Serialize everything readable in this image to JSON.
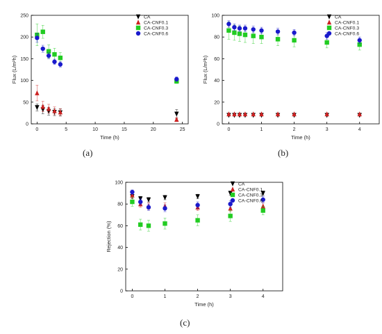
{
  "chart_data": [
    {
      "panel": "(a)",
      "type": "scatter",
      "xlabel": "Time (h)",
      "ylabel": "Flux (L/m²h)",
      "xlim": [
        -1,
        26
      ],
      "ylim": [
        0,
        250
      ],
      "xticks": [
        0,
        5,
        10,
        15,
        20,
        25
      ],
      "yticks": [
        0,
        50,
        100,
        150,
        200,
        250
      ],
      "grid": false,
      "legend_position": "top-right",
      "series": [
        {
          "name": "CA",
          "color": "#000000",
          "marker": "triangle-down",
          "x": [
            0,
            1,
            2,
            3,
            4,
            24
          ],
          "y": [
            38,
            33,
            29,
            27,
            26,
            23
          ],
          "err": [
            8,
            10,
            9,
            8,
            8,
            10
          ]
        },
        {
          "name": "CA-CNF0.1",
          "color": "#cc2222",
          "marker": "triangle-up",
          "x": [
            0,
            1,
            2,
            3,
            4,
            24
          ],
          "y": [
            71,
            40,
            35,
            30,
            27,
            10
          ],
          "err": [
            18,
            12,
            10,
            9,
            8,
            4
          ]
        },
        {
          "name": "CA-CNF0.3",
          "color": "#22cc22",
          "marker": "square",
          "x": [
            0,
            1,
            2,
            3,
            4,
            24
          ],
          "y": [
            205,
            212,
            167,
            160,
            152,
            98
          ],
          "err": [
            25,
            15,
            15,
            14,
            12,
            5
          ]
        },
        {
          "name": "CA-CNF0.6",
          "color": "#1a1acc",
          "marker": "circle",
          "x": [
            0,
            1,
            2,
            3,
            4,
            24
          ],
          "y": [
            198,
            173,
            157,
            143,
            137,
            103
          ],
          "err": [
            10,
            8,
            7,
            6,
            6,
            5
          ]
        }
      ]
    },
    {
      "panel": "(b)",
      "type": "scatter",
      "xlabel": "Time (h)",
      "ylabel": "Flux (L/m²h)",
      "xlim": [
        -0.2,
        4.6
      ],
      "ylim": [
        0,
        100
      ],
      "xticks": [
        0,
        1,
        2,
        3,
        4
      ],
      "yticks": [
        0,
        20,
        40,
        60,
        80,
        100
      ],
      "grid": false,
      "legend_position": "top-right",
      "series": [
        {
          "name": "CA",
          "color": "#000000",
          "marker": "triangle-down",
          "x": [
            0,
            0.17,
            0.33,
            0.5,
            0.75,
            1,
            1.5,
            2,
            3,
            4
          ],
          "y": [
            8,
            8,
            8,
            8,
            8,
            8,
            8,
            8,
            8,
            8
          ],
          "err": [
            0.5,
            0.5,
            0.5,
            0.5,
            0.5,
            0.5,
            0.5,
            0.5,
            0.5,
            0.5
          ]
        },
        {
          "name": "CA-CNF0.1",
          "color": "#cc2222",
          "marker": "triangle-up",
          "x": [
            0,
            0.17,
            0.33,
            0.5,
            0.75,
            1,
            1.5,
            2,
            3,
            4
          ],
          "y": [
            9,
            9,
            9,
            9,
            9,
            9,
            9,
            9,
            9,
            9
          ],
          "err": [
            0.5,
            0.5,
            0.5,
            0.5,
            0.5,
            0.5,
            0.5,
            0.5,
            0.5,
            0.5
          ]
        },
        {
          "name": "CA-CNF0.3",
          "color": "#22cc22",
          "marker": "square",
          "x": [
            0,
            0.17,
            0.33,
            0.5,
            0.75,
            1,
            1.5,
            2,
            3,
            4
          ],
          "y": [
            86,
            84,
            83,
            82,
            81,
            80,
            78,
            77,
            75,
            73
          ],
          "err": [
            8,
            7,
            7,
            7,
            7,
            6,
            6,
            6,
            5,
            5
          ]
        },
        {
          "name": "CA-CNF0.6",
          "color": "#1a1acc",
          "marker": "circle",
          "x": [
            0,
            0.17,
            0.33,
            0.5,
            0.75,
            1,
            1.5,
            2,
            3,
            4
          ],
          "y": [
            92,
            89,
            88,
            88,
            87,
            86,
            85,
            84,
            81,
            77
          ],
          "err": [
            3,
            3,
            3,
            3,
            3,
            3,
            3,
            3,
            3,
            3
          ]
        }
      ]
    },
    {
      "panel": "(c)",
      "type": "scatter",
      "xlabel": "Time (h)",
      "ylabel": "Rejection (%)",
      "xlim": [
        -0.2,
        4.6
      ],
      "ylim": [
        0,
        100
      ],
      "xticks": [
        0,
        1,
        2,
        3,
        4
      ],
      "yticks": [
        0,
        20,
        40,
        60,
        80,
        100
      ],
      "grid": false,
      "legend_position": "top-right",
      "series": [
        {
          "name": "CA",
          "color": "#000000",
          "marker": "triangle-down",
          "x": [
            0,
            0.25,
            0.5,
            1,
            2,
            3,
            4
          ],
          "y": [
            87,
            85,
            84,
            86,
            87,
            90,
            90
          ],
          "err": [
            2,
            2,
            2,
            2,
            2,
            2,
            2
          ]
        },
        {
          "name": "CA-CNF0.1",
          "color": "#cc2222",
          "marker": "triangle-up",
          "x": [
            0,
            0.25,
            0.5,
            1,
            2,
            3,
            4
          ],
          "y": [
            88,
            80,
            78,
            78,
            77,
            76,
            78
          ],
          "err": [
            3,
            3,
            3,
            3,
            3,
            3,
            3
          ]
        },
        {
          "name": "CA-CNF0.3",
          "color": "#22cc22",
          "marker": "square",
          "x": [
            0,
            0.25,
            0.5,
            1,
            2,
            3,
            4
          ],
          "y": [
            82,
            61,
            60,
            62,
            65,
            69,
            74
          ],
          "err": [
            4,
            5,
            5,
            5,
            5,
            5,
            4
          ]
        },
        {
          "name": "CA-CNF0.6",
          "color": "#1a1acc",
          "marker": "circle",
          "x": [
            0,
            0.25,
            0.5,
            1,
            2,
            3,
            4
          ],
          "y": [
            91,
            82,
            77,
            76,
            79,
            80,
            84
          ],
          "err": [
            2,
            3,
            3,
            3,
            3,
            3,
            3
          ]
        }
      ]
    }
  ]
}
